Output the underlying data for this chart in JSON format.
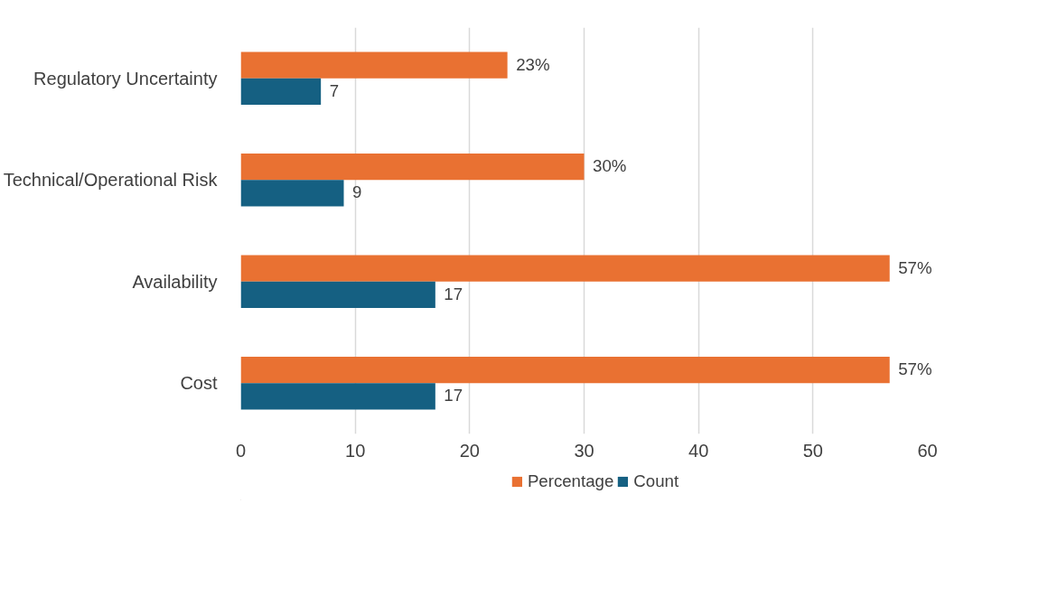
{
  "chart_data": {
    "type": "bar",
    "orientation": "horizontal",
    "categories": [
      "Regulatory Uncertainty",
      "Technical/Operational Risk",
      "Availability",
      "Cost"
    ],
    "series": [
      {
        "name": "Percentage",
        "color": "#e97132",
        "values": [
          23.3,
          30,
          56.7,
          56.7
        ],
        "value_labels": [
          "23%",
          "30%",
          "57%",
          "57%"
        ]
      },
      {
        "name": "Count",
        "color": "#156082",
        "values": [
          7,
          9,
          17,
          17
        ],
        "value_labels": [
          "7",
          "9",
          "17",
          "17"
        ]
      }
    ],
    "xlim": [
      0,
      60
    ],
    "xticks": [
      0,
      10,
      20,
      30,
      40,
      50,
      60
    ],
    "grid": "x",
    "legend": "bottom"
  }
}
